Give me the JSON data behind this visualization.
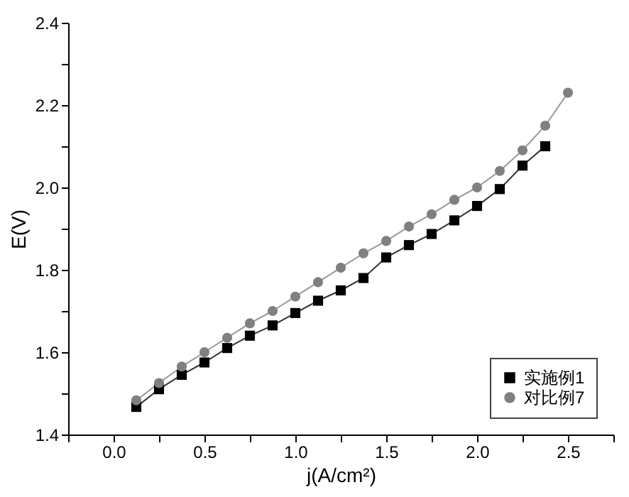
{
  "chart_data": {
    "type": "line",
    "xlabel": "j(A/cm²)",
    "ylabel": "E(V)",
    "x": [
      0.125,
      0.25,
      0.375,
      0.5,
      0.625,
      0.75,
      0.875,
      1.0,
      1.125,
      1.25,
      1.375,
      1.5,
      1.625,
      1.75,
      1.875,
      2.0,
      2.125,
      2.25,
      2.375,
      2.5
    ],
    "series": [
      {
        "name": "实施例1",
        "color": "#000000",
        "marker": "square",
        "values": [
          1.467,
          1.51,
          1.545,
          1.575,
          1.61,
          1.64,
          1.665,
          1.695,
          1.725,
          1.75,
          1.78,
          1.83,
          1.86,
          1.887,
          1.92,
          1.955,
          1.996,
          2.053,
          2.1,
          null
        ]
      },
      {
        "name": "对比例7",
        "color": "#808080",
        "marker": "circle",
        "values": [
          1.483,
          1.525,
          1.565,
          1.6,
          1.635,
          1.67,
          1.7,
          1.735,
          1.77,
          1.805,
          1.84,
          1.87,
          1.905,
          1.935,
          1.97,
          2.0,
          2.04,
          2.09,
          2.15,
          2.23
        ]
      }
    ],
    "xlim": [
      -0.25,
      2.75
    ],
    "ylim": [
      1.4,
      2.4
    ],
    "xticks": [
      {
        "value": -0.25,
        "label": null
      },
      {
        "value": 0,
        "label": "0.0"
      },
      {
        "value": 0.25,
        "label": null
      },
      0.5,
      {
        "value": 0.75,
        "label": null
      },
      {
        "value": 1,
        "label": "1.0"
      },
      {
        "value": 1.25,
        "label": null
      },
      1.5,
      {
        "value": 1.75,
        "label": null
      },
      {
        "value": 2,
        "label": "2.0"
      },
      {
        "value": 2.25,
        "label": null
      },
      2.5,
      {
        "value": 2.75,
        "label": null
      }
    ],
    "yticks": [
      1.4,
      {
        "value": 1.5,
        "label": null
      },
      1.6,
      {
        "value": 1.7,
        "label": null
      },
      1.8,
      {
        "value": 1.9,
        "label": null
      },
      {
        "value": 2,
        "label": "2.0"
      },
      {
        "value": 2.1,
        "label": null
      },
      2.2,
      {
        "value": 2.3,
        "label": null
      },
      2.4
    ],
    "grid": false,
    "legend": "bottom right",
    "line_style": "solid"
  }
}
